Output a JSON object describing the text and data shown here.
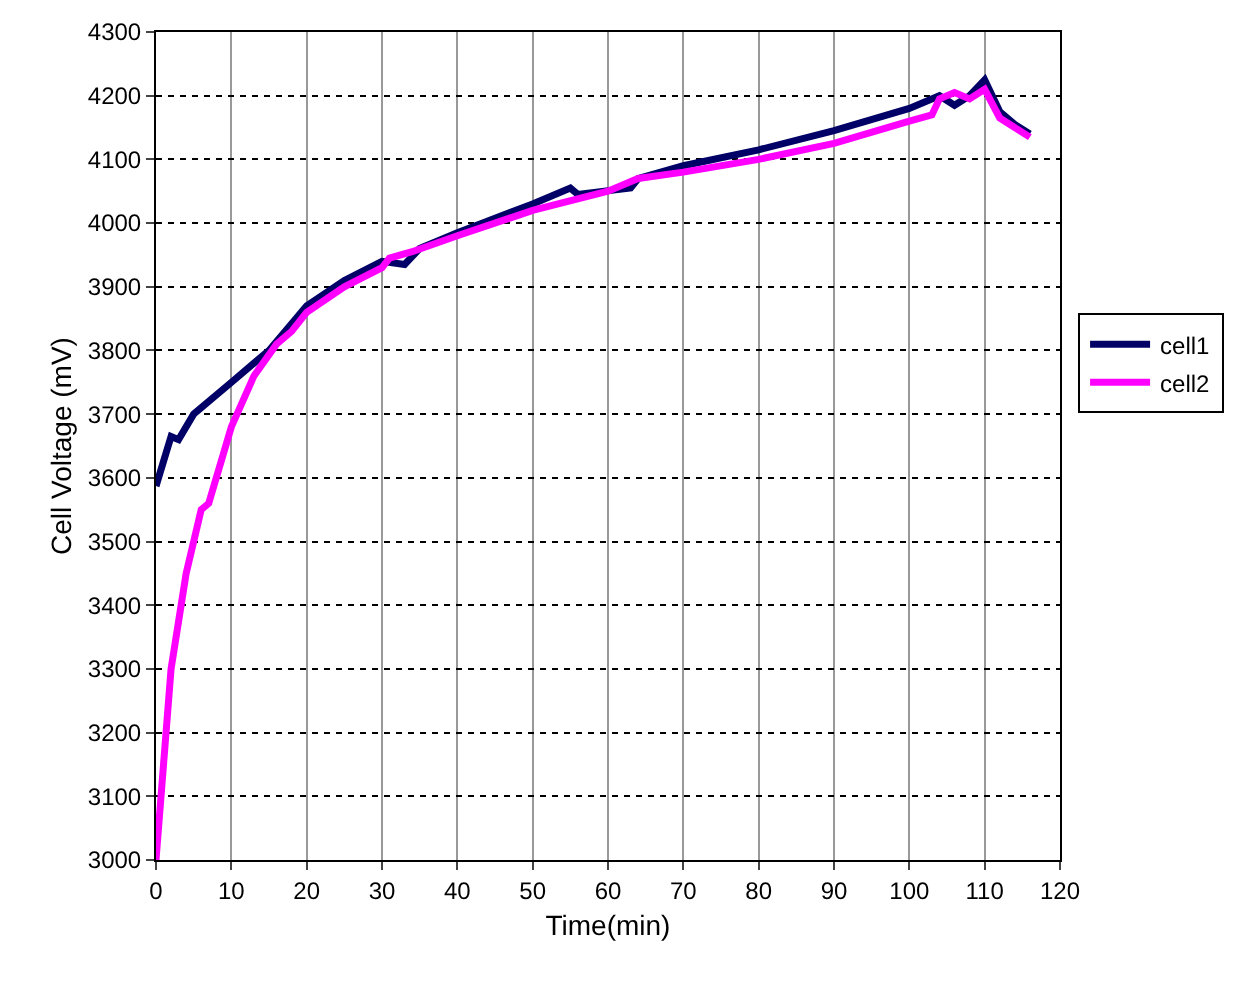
{
  "chart_data": {
    "type": "line",
    "xlabel": "Time(min)",
    "ylabel": "Cell Voltage (mV)",
    "xlim": [
      0,
      120
    ],
    "xticks": [
      0,
      10,
      20,
      30,
      40,
      50,
      60,
      70,
      80,
      90,
      100,
      110,
      120
    ],
    "ylim": [
      3000,
      4300
    ],
    "yticks": [
      3000,
      3100,
      3200,
      3300,
      3400,
      3500,
      3600,
      3700,
      3800,
      3900,
      4000,
      4100,
      4200,
      4300
    ],
    "grid": true,
    "legend": "right",
    "marker": "none",
    "line_style": "solid",
    "series": [
      {
        "name": "cell1",
        "color": "#000066",
        "x": [
          0,
          2,
          3,
          5,
          10,
          15,
          20,
          25,
          30,
          33,
          35,
          40,
          50,
          55,
          56,
          63,
          64,
          70,
          80,
          90,
          100,
          104,
          106,
          108,
          110,
          112,
          114,
          116
        ],
        "values": [
          3587,
          3665,
          3660,
          3700,
          3750,
          3800,
          3870,
          3910,
          3940,
          3935,
          3960,
          3985,
          4030,
          4055,
          4045,
          4055,
          4070,
          4090,
          4115,
          4145,
          4180,
          4200,
          4185,
          4200,
          4225,
          4175,
          4155,
          4140
        ]
      },
      {
        "name": "cell2",
        "color": "#ff00ff",
        "x": [
          0,
          2,
          4,
          6,
          7,
          10,
          13,
          16,
          18,
          20,
          25,
          30,
          31,
          34,
          40,
          50,
          60,
          64,
          70,
          80,
          90,
          100,
          103,
          104,
          106,
          108,
          110,
          112,
          116
        ],
        "values": [
          3000,
          3300,
          3450,
          3550,
          3560,
          3680,
          3760,
          3810,
          3830,
          3860,
          3900,
          3930,
          3945,
          3955,
          3980,
          4020,
          4050,
          4070,
          4080,
          4100,
          4125,
          4160,
          4170,
          4195,
          4205,
          4195,
          4210,
          4165,
          4135
        ]
      }
    ]
  }
}
